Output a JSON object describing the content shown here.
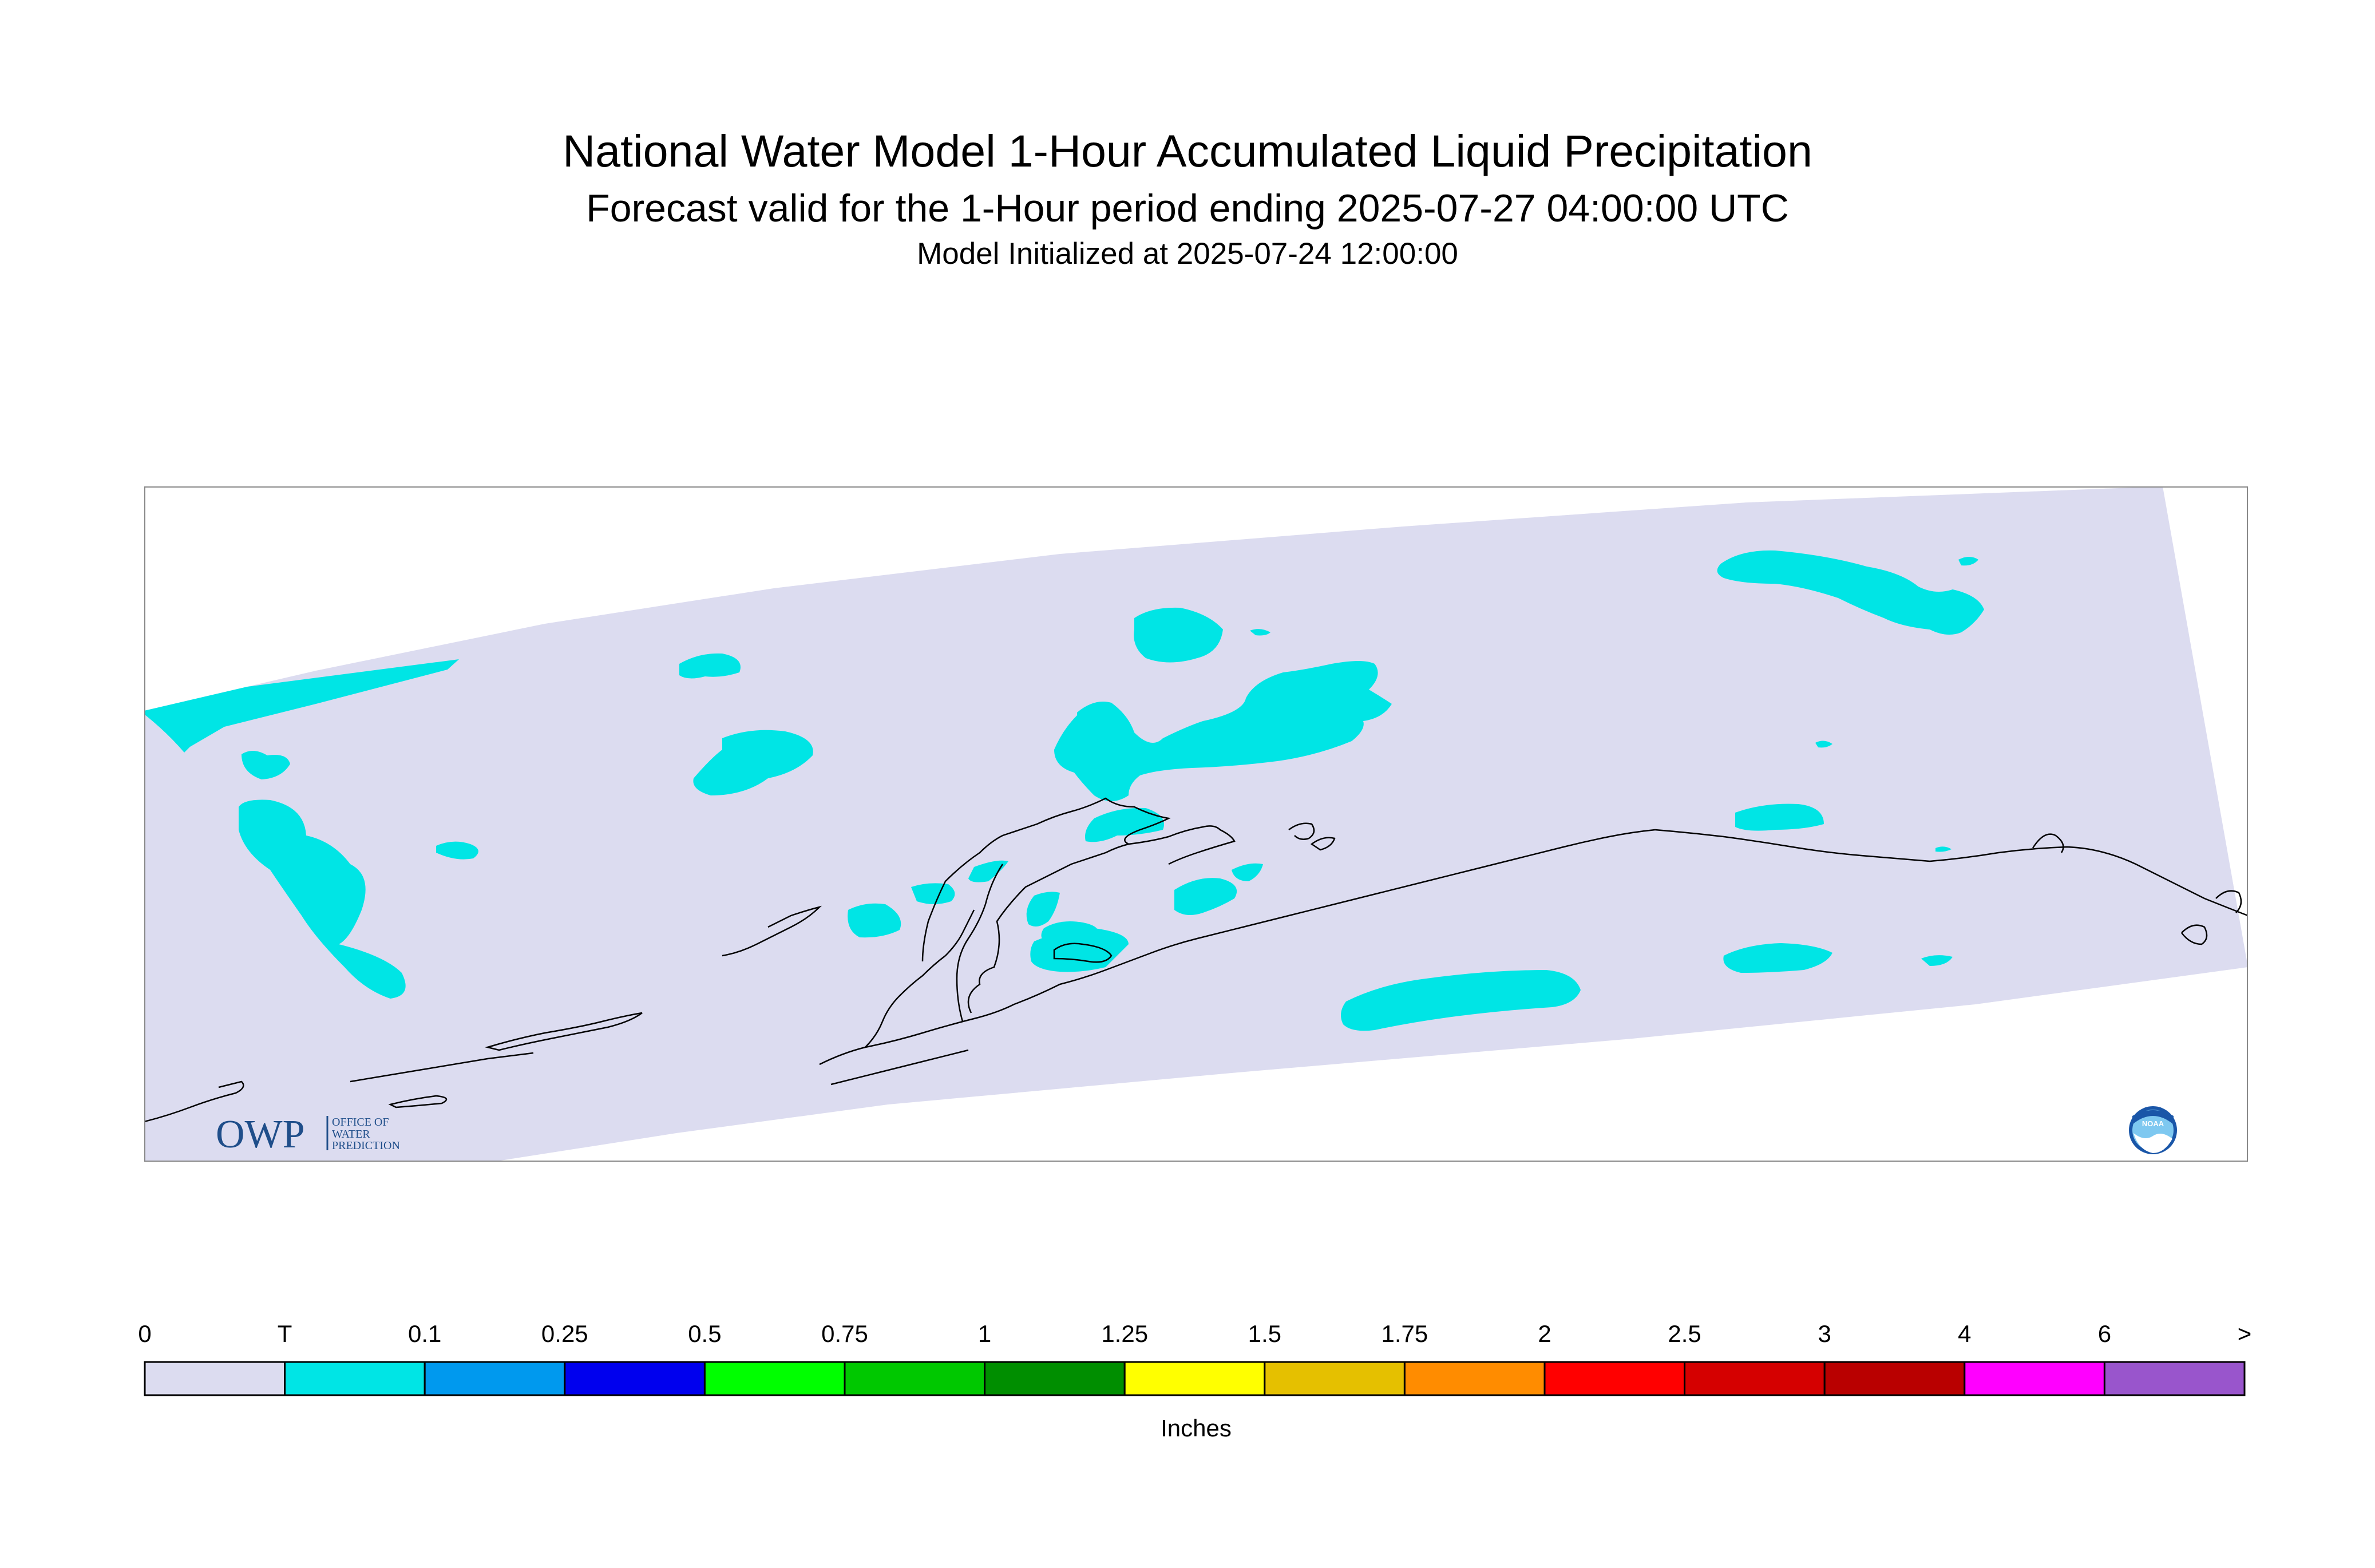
{
  "title": "National Water Model 1-Hour Accumulated Liquid Precipitation",
  "subtitle": "Forecast valid for the 1-Hour period ending 2025-07-27 04:00:00 UTC",
  "init": "Model Initialized at 2025-07-24 12:00:00",
  "logos": {
    "owp": "OWP",
    "owp_line1": "OFFICE OF",
    "owp_line2": "WATER",
    "owp_line3": "PREDICTION",
    "noaa": "NOAA",
    "noaa_icon": "noaa-logo-icon",
    "owp_icon": "owp-logo-icon"
  },
  "colors": {
    "domain_background": "#dcdcf0",
    "trace_precip": "#00e5e5",
    "coastline": "#000000"
  },
  "legend": {
    "unit_label": "Inches",
    "tick_labels": [
      "0",
      "T",
      "0.1",
      "0.25",
      "0.5",
      "0.75",
      "1",
      "1.25",
      "1.5",
      "1.75",
      "2",
      "2.5",
      "3",
      "4",
      "6",
      ">"
    ],
    "bins": [
      {
        "range": "0 - T",
        "color": "#dcdcf0"
      },
      {
        "range": "T - 0.1",
        "color": "#00e5e5"
      },
      {
        "range": "0.1 - 0.25",
        "color": "#0099ee"
      },
      {
        "range": "0.25 - 0.5",
        "color": "#0000ee"
      },
      {
        "range": "0.5 - 0.75",
        "color": "#00ff00"
      },
      {
        "range": "0.75 - 1",
        "color": "#00c800"
      },
      {
        "range": "1 - 1.25",
        "color": "#008e00"
      },
      {
        "range": "1.25 - 1.5",
        "color": "#ffff00"
      },
      {
        "range": "1.5 - 1.75",
        "color": "#e5c000"
      },
      {
        "range": "1.75 - 2",
        "color": "#ff8c00"
      },
      {
        "range": "2 - 2.5",
        "color": "#ff0000"
      },
      {
        "range": "2.5 - 3",
        "color": "#d50000"
      },
      {
        "range": "3 - 4",
        "color": "#b90000"
      },
      {
        "range": "4 - 6",
        "color": "#ff00ff"
      },
      {
        "range": "6 - >",
        "color": "#9955cc"
      }
    ]
  }
}
